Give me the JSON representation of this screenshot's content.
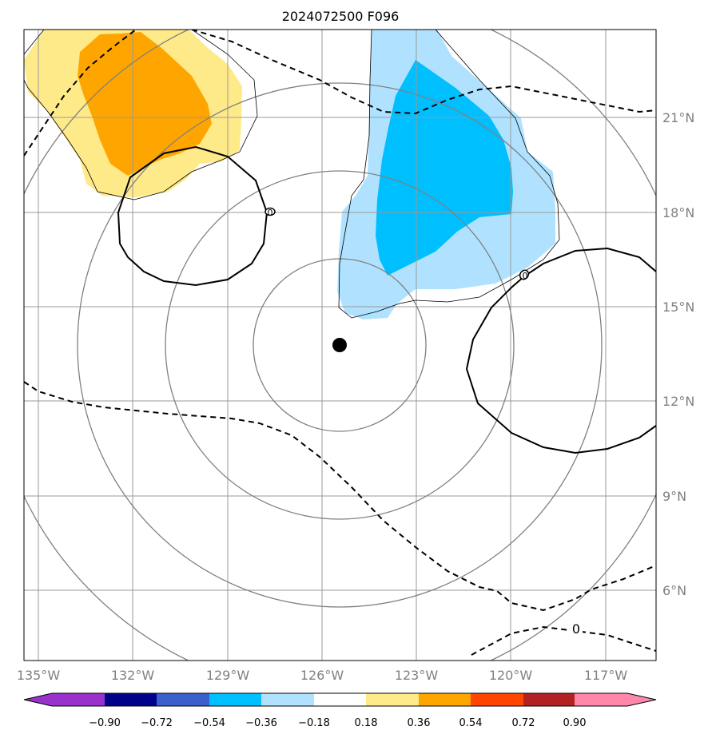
{
  "title": "2024072500 F096",
  "lon_labels": [
    "135°W",
    "132°W",
    "129°W",
    "126°W",
    "123°W",
    "120°W",
    "117°W"
  ],
  "lat_labels": [
    "21°N",
    "18°N",
    "15°N",
    "12°N",
    "9°N",
    "6°N"
  ],
  "contour_labels": [
    "0",
    "0",
    "0"
  ],
  "colorbar": {
    "labels": [
      "−0.90",
      "−0.72",
      "−0.54",
      "−0.36",
      "−0.18",
      "0.18",
      "0.36",
      "0.54",
      "0.72",
      "0.90"
    ],
    "colors": [
      "#9932cc",
      "#00008b",
      "#3a5fcd",
      "#00bfff",
      "#b0e2ff",
      "#ffffff",
      "#ffea8a",
      "#ffa500",
      "#ff4500",
      "#b22222",
      "#ff88aa"
    ]
  },
  "storm_center": {
    "lon": -125.5,
    "lat": 13.8
  }
}
